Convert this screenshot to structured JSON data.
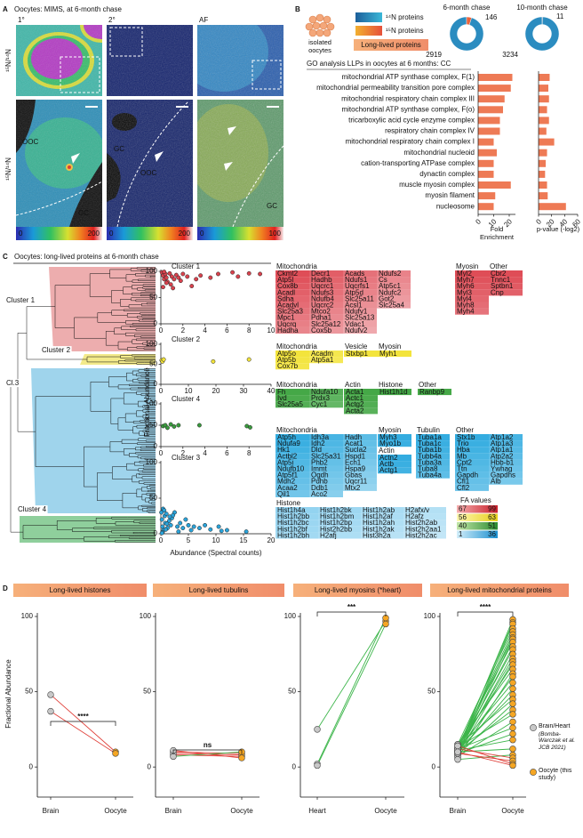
{
  "panel_a": {
    "label": "A",
    "title": "Oocytes: MIMS, at 6-month chase",
    "columns": [
      "1°",
      "2°",
      "AF"
    ],
    "y_labels": [
      "¹⁵N/¹⁴N",
      "¹⁵N/¹⁴N"
    ],
    "region_labels": [
      [
        "OOC",
        "GC"
      ],
      [
        "GC",
        "OOC"
      ],
      [
        "GC"
      ]
    ],
    "colorbars": [
      [
        0,
        200
      ],
      [
        0,
        200
      ],
      [
        0,
        100
      ]
    ]
  },
  "panel_b": {
    "label": "B",
    "cell_label": "isolated oocytes",
    "legend": [
      "¹⁴N proteins",
      "¹⁵N proteins"
    ],
    "highlight": "Long-lived proteins"
  },
  "panel_c": {
    "label": "C",
    "title": "Oocytes: long-lived proteins at 6-month chase",
    "dendrogram_labels": [
      "Cluster 1",
      "Cluster 2",
      "Cl.3",
      "Cluster 4"
    ],
    "x_label": "Abundance (Spectral counts)",
    "y_label": "Fractional Abundance",
    "gene_blocks": [
      {
        "color": "#df4d57",
        "groups": [
          {
            "title": "Mitochondria",
            "columns": [
              [
                "Ckmt2",
                "Atp5l",
                "Cox8b",
                "Acadl",
                "Sdha",
                "Acadvl",
                "Slc25a3",
                "Mpc1",
                "Uqcrq",
                "Hadha"
              ],
              [
                "Decr1",
                "Hadhb",
                "Uqcrc1",
                "Ndufs3",
                "Ndufb4",
                "Uqcrc2",
                "Mtco2",
                "Pdha1",
                "Slc25a12",
                "Cox5b"
              ],
              [
                "Acads",
                "Ndufs1",
                "Uqcrfs1",
                "Atp5d",
                "Slc25a11",
                "Acsl1",
                "Ndufv1",
                "Slc25a13",
                "Vdac1",
                "Ndufv2"
              ],
              [
                "Ndufs2",
                "Cs",
                "Atp5c1",
                "Ndufc2",
                "Got2",
                "Slc25a4"
              ]
            ]
          },
          {
            "title": "Myosin",
            "columns": [
              [
                "Myl2",
                "Myh7",
                "Myh6",
                "Myl3",
                "Myl4",
                "Myh8",
                "Myh4"
              ]
            ]
          },
          {
            "title": "Other",
            "columns": [
              [
                "Cbr2",
                "Tnnc1",
                "Sptbn1",
                "Cnp"
              ]
            ]
          }
        ]
      },
      {
        "color": "#f3e43c",
        "groups": [
          {
            "title": "Mitochondria",
            "columns": [
              [
                "Atp5o",
                "Atp5b",
                "Cox7b"
              ],
              [
                "Acadm",
                "Atp5a1"
              ]
            ]
          },
          {
            "title": "Vesicle",
            "columns": [
              [
                "Stxbp1"
              ]
            ]
          },
          {
            "title": "Myosin",
            "columns": [
              [
                "Myh1"
              ]
            ]
          }
        ]
      },
      {
        "color": "#45a847",
        "groups": [
          {
            "title": "Mitochondria",
            "columns": [
              [
                "Fh",
                "Ivd",
                "Slc25a5"
              ],
              [
                "Ndufa10",
                "Prdx3",
                "Cyc1"
              ]
            ]
          },
          {
            "title": "Actin",
            "columns": [
              [
                "Acta1",
                "Actc1",
                "Actg2",
                "Acta2"
              ]
            ]
          },
          {
            "title": "Histone",
            "columns": [
              [
                "Hist1h1d"
              ]
            ]
          },
          {
            "title": "Other",
            "columns": [
              [
                "Ranbp9"
              ]
            ]
          }
        ]
      },
      {
        "color": "#33ace0",
        "groups": [
          {
            "title": "Mitochondria",
            "columns": [
              [
                "Atp5h",
                "Ndufa9",
                "Hk1",
                "Actbl2",
                "Atp5i",
                "Ndufb10",
                "Atp5f1",
                "Mdh2",
                "Acaa2",
                "Qil1"
              ],
              [
                "Idh3a",
                "Idh2",
                "Dld",
                "Slc25a31",
                "Phb2",
                "Immt",
                "Ogdh",
                "Pdhb",
                "Ddb1",
                "Aco2"
              ],
              [
                "Hadh",
                "Acat1",
                "Sucla2",
                "Hspd1",
                "Ech1",
                "Hspa9",
                "Gbas",
                "Uqcr11",
                "Mtx2"
              ]
            ]
          },
          {
            "title": "Myosin",
            "columns": [
              [
                "Myh3",
                "Myo1b"
              ]
            ]
          },
          {
            "title": "Actin",
            "columns": [
              [
                "Actn2",
                "Actb",
                "Actg1"
              ]
            ]
          },
          {
            "title": "Tubulin",
            "columns": [
              [
                "Tuba1a",
                "Tuba1c",
                "Tuba1b",
                "Tubb4a",
                "Tuba3a",
                "Tuba8",
                "Tuba4a"
              ]
            ]
          },
          {
            "title": "Other",
            "columns": [
              [
                "Stx1b",
                "Trio",
                "Hba",
                "Mb",
                "Cpt2",
                "Ttn",
                "Gapdh",
                "Cfl1",
                "Cfl2"
              ],
              [
                "Atp1a2",
                "Atp1a3",
                "Atp1a1",
                "Atp2a2",
                "Hbb-b1",
                "Ywhag",
                "Gapdhs",
                "Alb"
              ]
            ]
          }
        ]
      },
      {
        "color": "#93d3f0",
        "groups": [
          {
            "title": "Histone",
            "columns": [
              [
                "Hist1h4a",
                "Hist1h2bb",
                "Hist1h2bc",
                "Hist1h2bf",
                "Hist1h2bh"
              ],
              [
                "Hist1h2bk",
                "Hist1h2bm",
                "Hist1h2bp",
                "Hist2h2bb",
                "H2afj"
              ],
              [
                "Hist1h2ab",
                "Hist1h2af",
                "Hist1h2ah",
                "Hist1h2ak",
                "Hist3h2a"
              ],
              [
                "H2afx/v",
                "H2afz",
                "Hist2h2ab",
                "Hist2h2aa1",
                "Hist2h2ac"
              ]
            ]
          }
        ]
      }
    ],
    "fa_legend": {
      "title": "FA values",
      "ranges": [
        [
          67,
          99
        ],
        [
          56,
          63
        ],
        [
          40,
          51
        ],
        [
          1,
          36
        ]
      ],
      "colors": [
        [
          "#f6b0b0",
          "#c81e2a"
        ],
        [
          "#fff8b0",
          "#e6cf1c"
        ],
        [
          "#c2e6a8",
          "#2b8c30"
        ],
        [
          "#d2eefa",
          "#1a8fcf"
        ]
      ]
    }
  },
  "panel_d": {
    "label": "D",
    "y_label": "Fractional Abundance",
    "legend": [
      {
        "label": "Brain/Heart",
        "note": "(Bomba-Warczak et al. JCB 2021)",
        "color": "#c8c8c8"
      },
      {
        "label": "Oocyte (this study)",
        "color": "#f5a623"
      }
    ],
    "increase_color": "#3cb54a",
    "decrease_color": "#e0403a"
  },
  "chart_data": [
    {
      "type": "bar",
      "orientation": "horizontal",
      "title": "GO analysis LLPs in oocytes at 6 months: CC",
      "categories": [
        "mitochondrial ATP synthase complex, F(1)",
        "mitochondrial permeability transition pore complex",
        "mitochondrial respiratory chain complex III",
        "mitochondrial ATP synthase complex, F(o)",
        "tricarboxylic acid cycle enzyme complex",
        "respiratory chain complex IV",
        "mitochondrial respiratory chain complex I",
        "mitochondrial nucleoid",
        "cation-transporting ATPase complex",
        "dynactin complex",
        "muscle myosin complex",
        "myosin filament",
        "nucleosome"
      ],
      "series": [
        {
          "name": "Fold Enrichment",
          "color": "#ee7a55",
          "values": [
            22,
            21,
            17,
            16,
            14,
            14,
            10,
            12,
            10,
            10,
            21,
            11,
            10
          ]
        },
        {
          "name": "p-value (-log2)",
          "color": "#ee7a55",
          "axis": "x2",
          "values": [
            17,
            15,
            16,
            13,
            16,
            12,
            24,
            13,
            11,
            10,
            13,
            14,
            42
          ]
        }
      ],
      "xlim": [
        0,
        24
      ],
      "xticks": [
        0,
        10,
        20
      ],
      "x2lim": [
        0,
        60
      ],
      "x2ticks": [
        0,
        20,
        40,
        60
      ]
    },
    {
      "type": "pie",
      "donut": true,
      "title": "6-month chase",
      "values": [
        2919,
        146
      ],
      "colors": [
        "#2b8cc0",
        "#e9633c"
      ]
    },
    {
      "type": "pie",
      "donut": true,
      "title": "10-month chase",
      "values": [
        3234,
        11
      ],
      "colors": [
        "#2b8cc0",
        "#e9633c"
      ]
    },
    {
      "type": "scatter",
      "title": "Cluster 1",
      "color": "#d8434e",
      "x": [
        0.1,
        0.2,
        0.3,
        0.4,
        0.5,
        0.6,
        0.8,
        0.9,
        1.0,
        1.2,
        1.4,
        1.6,
        1.8,
        2.0,
        2.4,
        2.8,
        3.2,
        3.6,
        4.5,
        5.2,
        6.5,
        7.0,
        8.0,
        9.0,
        0.2,
        0.5,
        1.1,
        0.3
      ],
      "values": [
        98,
        92,
        85,
        95,
        88,
        80,
        96,
        75,
        90,
        85,
        93,
        88,
        82,
        95,
        90,
        72,
        85,
        92,
        88,
        95,
        98,
        90,
        96,
        95,
        70,
        78,
        68,
        99
      ],
      "xlim": [
        0,
        10
      ],
      "xticks": [
        0,
        2,
        4,
        6,
        8,
        10
      ],
      "ylim": [
        0,
        100
      ],
      "yticks": [
        0,
        50,
        100
      ]
    },
    {
      "type": "scatter",
      "title": "Cluster 2",
      "color": "#f2e33a",
      "x": [
        0.3,
        0.6,
        1.0,
        19,
        32
      ],
      "values": [
        60,
        57,
        62,
        57,
        62
      ],
      "xlim": [
        0,
        40
      ],
      "xticks": [
        0,
        10,
        20,
        30,
        40
      ],
      "ylim": [
        0,
        100
      ],
      "yticks": [
        0,
        50,
        100
      ]
    },
    {
      "type": "scatter",
      "title": "Cluster 4",
      "color": "#3a9a3e",
      "x": [
        0.2,
        0.4,
        0.6,
        0.9,
        1.2,
        1.6,
        3.5,
        7.8,
        8.1
      ],
      "values": [
        48,
        50,
        44,
        52,
        47,
        50,
        50,
        48,
        45
      ],
      "xlim": [
        0,
        10
      ],
      "xticks": [
        0,
        2,
        4,
        6,
        8
      ],
      "ylim": [
        0,
        100
      ],
      "yticks": [
        0,
        50,
        100
      ]
    },
    {
      "type": "scatter",
      "title": "Cluster 3",
      "color": "#2aa3da",
      "x": [
        0.1,
        0.2,
        0.3,
        0.4,
        0.5,
        0.7,
        0.8,
        1.0,
        1.2,
        1.5,
        1.8,
        2.0,
        2.5,
        3.0,
        3.5,
        4.0,
        4.5,
        5.0,
        5.5,
        6.0,
        7.0,
        8.0,
        9.0,
        10.5,
        11.0,
        12.0,
        15.5,
        0.3,
        0.6,
        1.1,
        2.2,
        3.2,
        0.2,
        0.9,
        1.6
      ],
      "values": [
        30,
        20,
        10,
        35,
        5,
        25,
        15,
        28,
        8,
        18,
        12,
        22,
        30,
        10,
        15,
        8,
        20,
        12,
        5,
        10,
        8,
        12,
        6,
        10,
        4,
        5,
        3,
        2,
        33,
        14,
        26,
        3,
        1,
        6,
        24
      ],
      "xlim": [
        0,
        20
      ],
      "xticks": [
        0,
        5,
        10,
        15,
        20
      ],
      "ylim": [
        0,
        100
      ],
      "yticks": [
        0,
        50,
        100
      ]
    },
    {
      "type": "paired",
      "title": "Long-lived histones",
      "categories": [
        "Brain",
        "Oocyte"
      ],
      "annotation": "****",
      "values": [
        [
          48,
          10
        ],
        [
          37,
          9
        ]
      ],
      "ylim": [
        -20,
        100
      ],
      "yticks": [
        0,
        50,
        100
      ]
    },
    {
      "type": "paired",
      "title": "Long-lived tubulins",
      "categories": [
        "Brain",
        "Oocyte"
      ],
      "annotation": "ns",
      "values": [
        [
          8,
          7
        ],
        [
          10,
          9
        ],
        [
          9,
          8
        ],
        [
          7,
          10
        ],
        [
          11,
          6
        ]
      ],
      "ylim": [
        -20,
        100
      ],
      "yticks": [
        0,
        50,
        100
      ]
    },
    {
      "type": "paired",
      "title": "Long-lived myosins (*heart)",
      "categories": [
        "Heart",
        "Oocyte"
      ],
      "annotation": "***",
      "values": [
        [
          25,
          97
        ],
        [
          2,
          99
        ],
        [
          1,
          95
        ]
      ],
      "ylim": [
        -20,
        100
      ],
      "yticks": [
        0,
        50,
        100
      ]
    },
    {
      "type": "paired",
      "title": "Long-lived mitochondrial proteins",
      "categories": [
        "Brain",
        "Oocyte"
      ],
      "annotation": "****",
      "values": [
        [
          10,
          98
        ],
        [
          12,
          96
        ],
        [
          8,
          95
        ],
        [
          15,
          92
        ],
        [
          11,
          90
        ],
        [
          9,
          88
        ],
        [
          13,
          86
        ],
        [
          7,
          85
        ],
        [
          14,
          83
        ],
        [
          10,
          80
        ],
        [
          12,
          78
        ],
        [
          9,
          75
        ],
        [
          11,
          72
        ],
        [
          8,
          70
        ],
        [
          13,
          68
        ],
        [
          15,
          65
        ],
        [
          6,
          62
        ],
        [
          10,
          60
        ],
        [
          12,
          56
        ],
        [
          9,
          52
        ],
        [
          11,
          48
        ],
        [
          14,
          45
        ],
        [
          8,
          42
        ],
        [
          10,
          38
        ],
        [
          13,
          35
        ],
        [
          7,
          30
        ],
        [
          12,
          26
        ],
        [
          9,
          22
        ],
        [
          11,
          18
        ],
        [
          10,
          12
        ],
        [
          5,
          8
        ],
        [
          12,
          6
        ],
        [
          9,
          4
        ],
        [
          14,
          2
        ],
        [
          10,
          1
        ]
      ],
      "ylim": [
        -20,
        100
      ],
      "yticks": [
        0,
        50,
        100
      ]
    }
  ]
}
